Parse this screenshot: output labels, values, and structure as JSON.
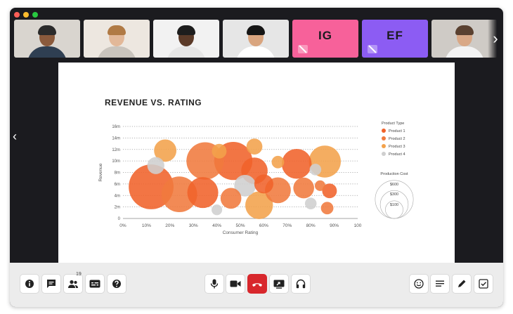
{
  "window": {
    "traffic_colors": [
      "#fe5f57",
      "#febc2e",
      "#28c840"
    ]
  },
  "participants": [
    {
      "kind": "video",
      "bg": "#d9d5cf",
      "skin": "#8a5a3c",
      "hair": "#2a2a2a",
      "shirt": "#2f3f52"
    },
    {
      "kind": "video",
      "bg": "#ede7e0",
      "skin": "#e2b899",
      "hair": "#b07a45",
      "shirt": "#c9c4bd"
    },
    {
      "kind": "video",
      "bg": "#f2f2f2",
      "skin": "#5b3a28",
      "hair": "#1d1d1d",
      "shirt": "#e6e6e6"
    },
    {
      "kind": "video",
      "bg": "#e6e6e6",
      "skin": "#d9a57f",
      "hair": "#151515",
      "shirt": "#ffffff"
    },
    {
      "kind": "initials",
      "initials": "IG",
      "bg": "#f7619a"
    },
    {
      "kind": "initials",
      "initials": "EF",
      "bg": "#8c5cf3"
    },
    {
      "kind": "video",
      "bg": "#cfcbc6",
      "skin": "#d9a886",
      "hair": "#5a4130",
      "shirt": "#f3f3f3"
    },
    {
      "kind": "video",
      "bg": "#7a8a8f",
      "skin": "#e8c4a8",
      "hair": "#e5e5e5",
      "shirt": "#4d6a7c"
    }
  ],
  "chart_data": {
    "type": "scatter",
    "subtype": "bubble",
    "title": "REVENUE VS. RATING",
    "xlabel": "Consumer Rating",
    "ylabel": "Revenue",
    "xlim": [
      0,
      100
    ],
    "ylim": [
      0,
      16
    ],
    "x_ticks": [
      "0%",
      "10%",
      "20%",
      "30%",
      "40%",
      "50%",
      "60%",
      "70%",
      "80%",
      "90%",
      "100"
    ],
    "y_ticks": [
      "0",
      "2m",
      "4m",
      "6m",
      "8m",
      "10m",
      "12m",
      "14m",
      "16m"
    ],
    "grid": "horizontal-dotted",
    "legend": {
      "title": "Product Type",
      "placement": "right",
      "entries": [
        {
          "name": "Product 1",
          "color": "#f0622a"
        },
        {
          "name": "Product 2",
          "color": "#f07a3e"
        },
        {
          "name": "Product 3",
          "color": "#f3a24b"
        },
        {
          "name": "Product 4",
          "color": "#cfcfcf"
        }
      ]
    },
    "size_legend": {
      "title": "Production Cost",
      "labels": [
        "$600",
        "$300",
        "$100"
      ],
      "values": [
        600,
        300,
        100
      ]
    },
    "series": [
      {
        "name": "Product 1",
        "color": "#f0622a",
        "points": [
          {
            "x": 12,
            "y": 5.5,
            "cost": 600
          },
          {
            "x": 34,
            "y": 4.5,
            "cost": 260
          },
          {
            "x": 47,
            "y": 10,
            "cost": 420
          },
          {
            "x": 56,
            "y": 8.3,
            "cost": 180
          },
          {
            "x": 74,
            "y": 9.5,
            "cost": 240
          },
          {
            "x": 88,
            "y": 4.8,
            "cost": 40
          },
          {
            "x": 60,
            "y": 6,
            "cost": 80
          }
        ]
      },
      {
        "name": "Product 2",
        "color": "#f07a3e",
        "points": [
          {
            "x": 24,
            "y": 4.2,
            "cost": 360
          },
          {
            "x": 35,
            "y": 10,
            "cost": 400
          },
          {
            "x": 46,
            "y": 3.5,
            "cost": 100
          },
          {
            "x": 66,
            "y": 4.9,
            "cost": 170
          },
          {
            "x": 77,
            "y": 5.3,
            "cost": 100
          },
          {
            "x": 84,
            "y": 5.7,
            "cost": 15
          },
          {
            "x": 87,
            "y": 1.8,
            "cost": 25
          }
        ]
      },
      {
        "name": "Product 3",
        "color": "#f3a24b",
        "points": [
          {
            "x": 18,
            "y": 11.8,
            "cost": 120
          },
          {
            "x": 41,
            "y": 11.7,
            "cost": 40
          },
          {
            "x": 56,
            "y": 12.5,
            "cost": 50
          },
          {
            "x": 66,
            "y": 9.8,
            "cost": 25
          },
          {
            "x": 86,
            "y": 9.9,
            "cost": 280
          },
          {
            "x": 58,
            "y": 2.3,
            "cost": 200
          }
        ]
      },
      {
        "name": "Product 4",
        "color": "#cfcfcf",
        "points": [
          {
            "x": 14,
            "y": 9.2,
            "cost": 60
          },
          {
            "x": 52,
            "y": 5.7,
            "cost": 110
          },
          {
            "x": 40,
            "y": 1.5,
            "cost": 15
          },
          {
            "x": 80,
            "y": 2.6,
            "cost": 20
          },
          {
            "x": 82,
            "y": 8.5,
            "cost": 20
          }
        ]
      }
    ]
  },
  "toolbar": {
    "left_icons": [
      "info-icon",
      "chat-icon",
      "participants-icon",
      "captions-icon",
      "help-icon"
    ],
    "participants_count": "19",
    "center_icons": [
      "microphone-icon",
      "camera-icon",
      "hang-up-icon",
      "share-screen-icon",
      "headphones-icon"
    ],
    "right_icons": [
      "emoji-icon",
      "notes-icon",
      "pen-icon",
      "tasks-icon"
    ],
    "hangup_color": "#d8272c"
  }
}
